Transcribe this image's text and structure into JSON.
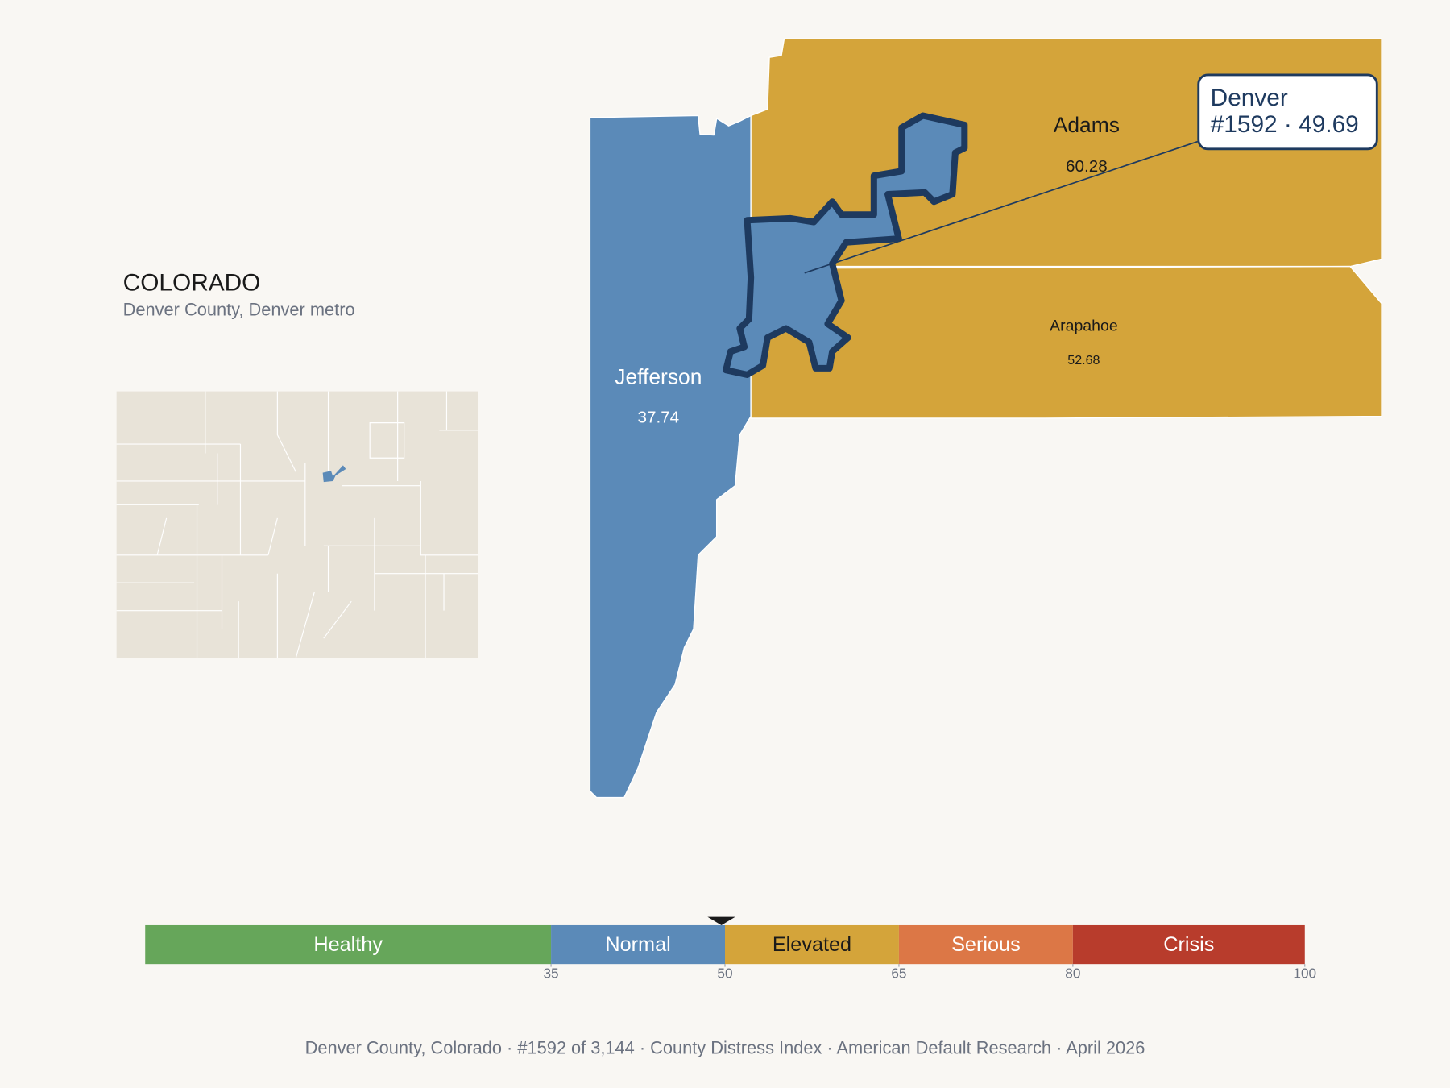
{
  "header": {
    "title": "COLORADO",
    "subtitle": "Denver County, Denver metro"
  },
  "counties": [
    {
      "name": "Jefferson",
      "value": 37.74
    },
    {
      "name": "Adams",
      "value": 60.28
    },
    {
      "name": "Arapahoe",
      "value": 52.68
    },
    {
      "name": "Denver",
      "value": 49.69
    }
  ],
  "callout": {
    "lines": [
      "Denver",
      "#1592 · 49.69"
    ],
    "value": 49.69
  },
  "scale": {
    "lim": [
      0,
      100
    ],
    "ticks": [
      35,
      50,
      65,
      80,
      100
    ],
    "bands": [
      {
        "label": "Healthy",
        "color": "#66a65a",
        "label_color": "#ffffff"
      },
      {
        "label": "Normal",
        "color": "#5b8ab8",
        "label_color": "#ffffff"
      },
      {
        "label": "Elevated",
        "color": "#d4a43a",
        "label_color": "#1a1a1a"
      },
      {
        "label": "Serious",
        "color": "#dc7746",
        "label_color": "#ffffff"
      },
      {
        "label": "Crisis",
        "color": "#b83c2c",
        "label_color": "#ffffff"
      }
    ]
  },
  "footer": "Denver County, Colorado  ·  #1592 of 3,144  ·  County Distress Index  ·  American Default Research  ·  April 2026"
}
